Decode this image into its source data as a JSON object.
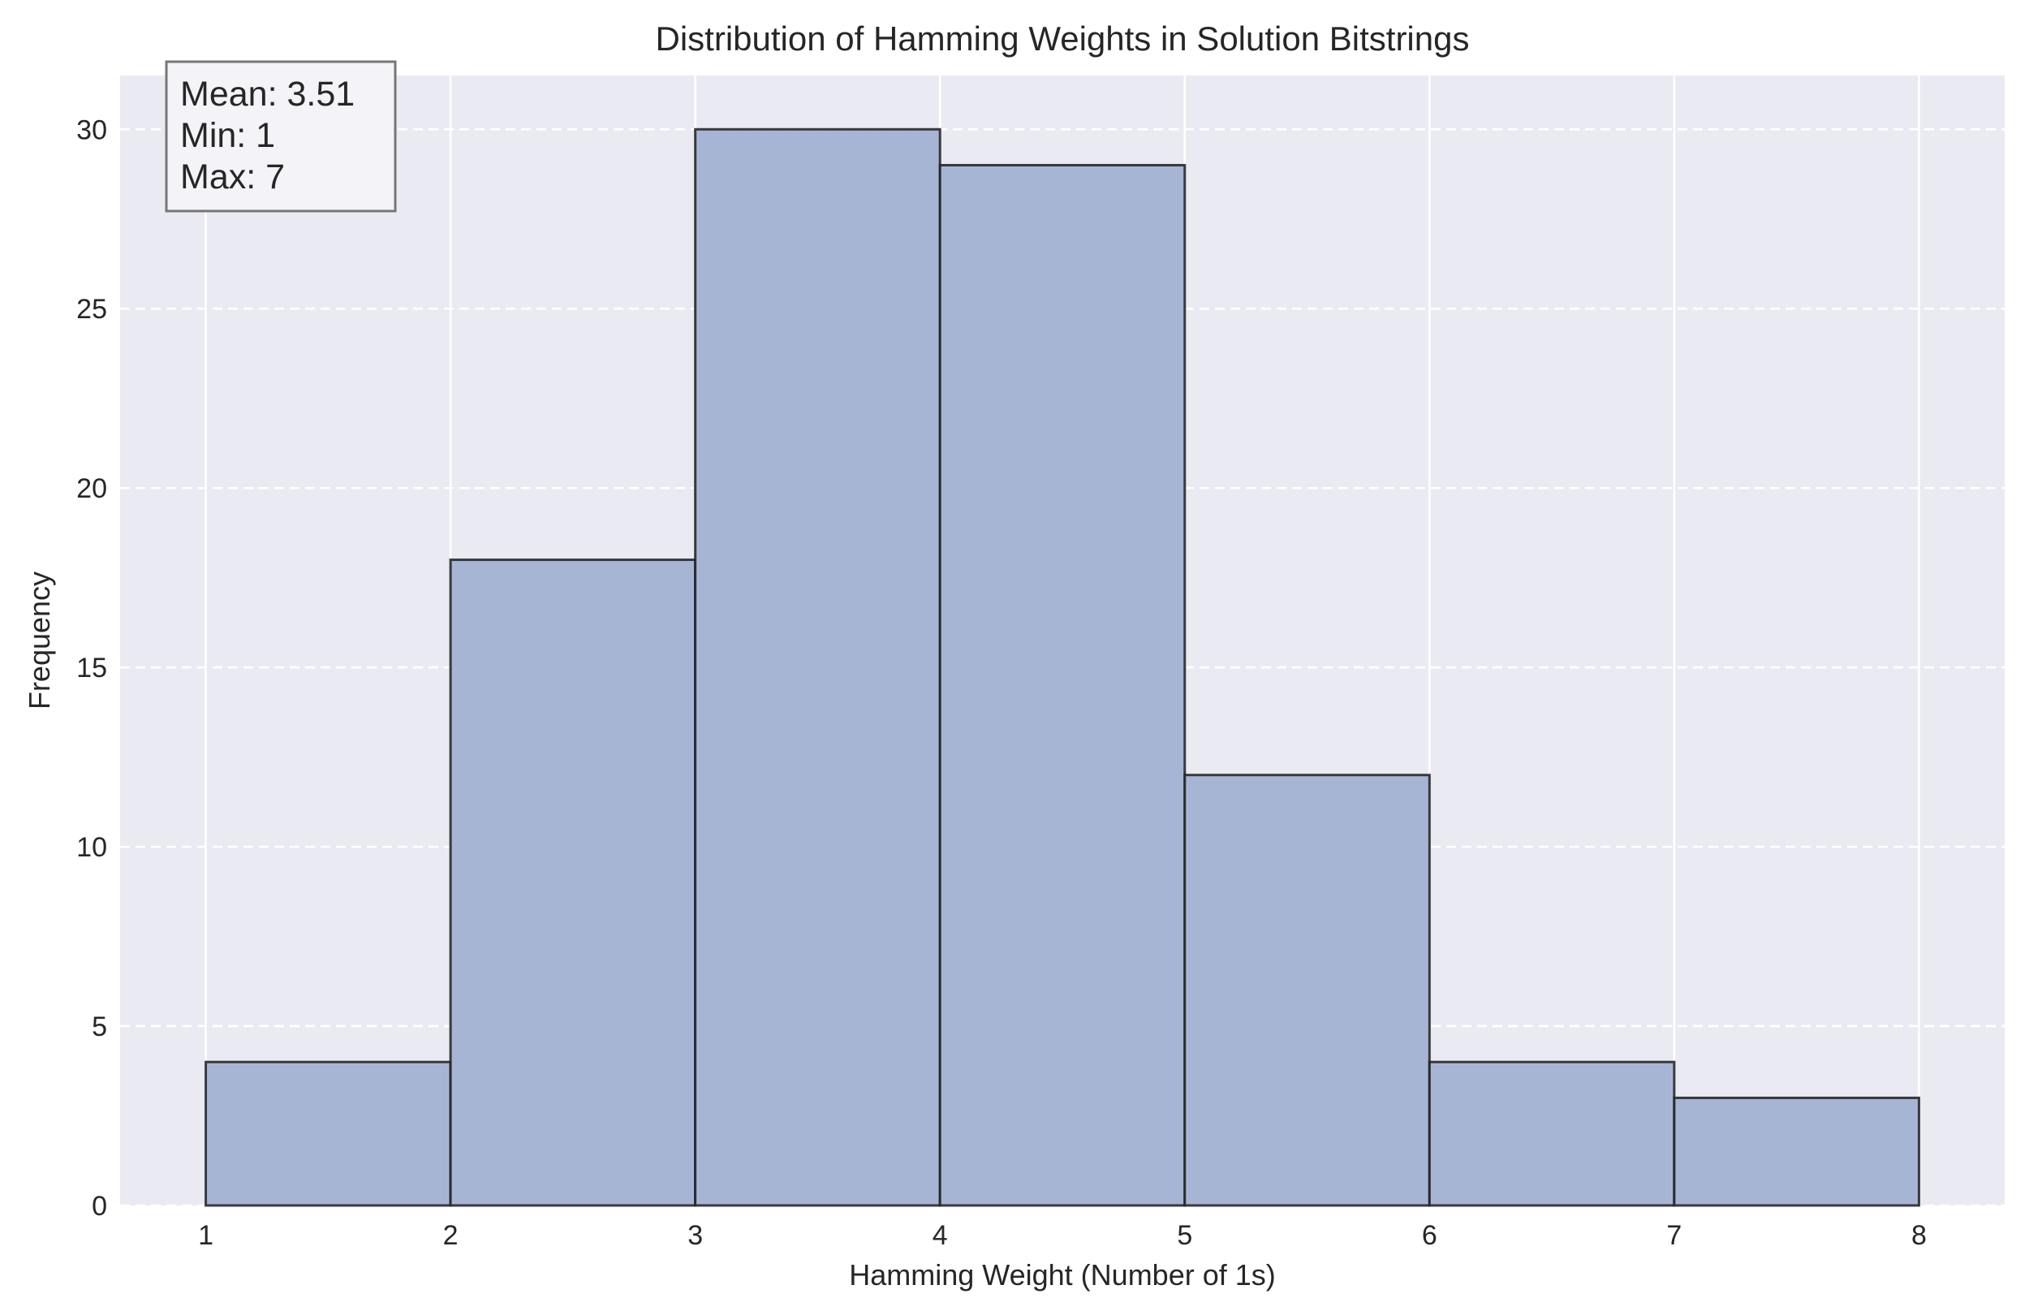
{
  "chart_data": {
    "type": "bar",
    "title": "Distribution of Hamming Weights in Solution Bitstrings",
    "xlabel": "Hamming Weight (Number of 1s)",
    "ylabel": "Frequency",
    "bin_edges": [
      1,
      2,
      3,
      4,
      5,
      6,
      7,
      8
    ],
    "values": [
      4,
      18,
      30,
      29,
      12,
      4,
      3
    ],
    "xlim": [
      0.65,
      8.35
    ],
    "ylim": [
      0,
      31.5
    ],
    "xticks": [
      1,
      2,
      3,
      4,
      5,
      6,
      7,
      8
    ],
    "yticks": [
      0,
      5,
      10,
      15,
      20,
      25,
      30
    ],
    "grid": true,
    "grid_y_style": "dashed",
    "annotation": {
      "lines": [
        "Mean: 3.51",
        "Min: 1",
        "Max: 7"
      ],
      "placement": "top-left"
    },
    "colors": {
      "bar_fill": "#a7b5d5",
      "bar_edge": "#1f1f1f",
      "plot_background": "#eaeaf2",
      "grid": "#ffffff",
      "text": "#262626"
    }
  }
}
